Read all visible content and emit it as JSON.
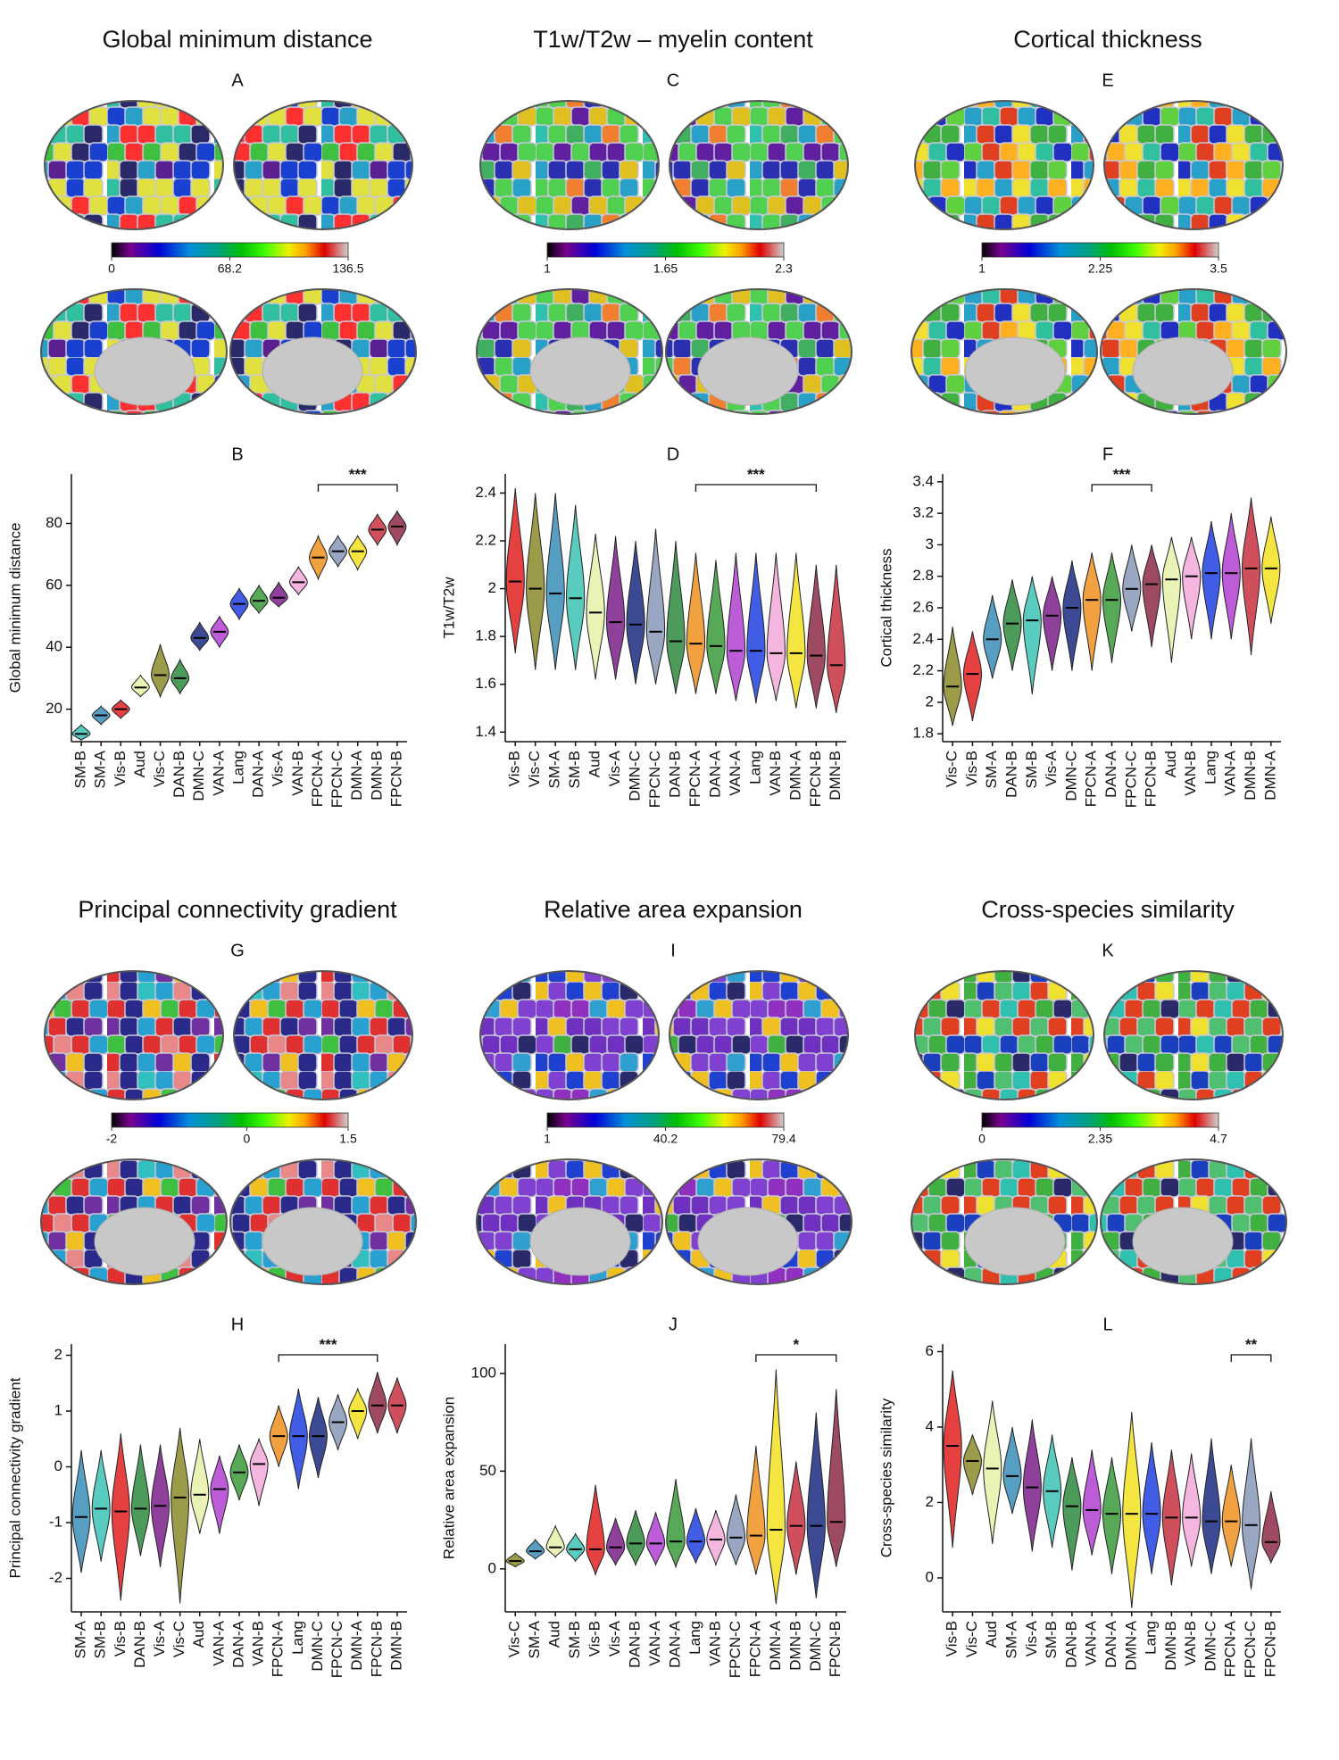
{
  "network_colors": {
    "SM-A": "#3a8db8",
    "SM-B": "#3cc2b4",
    "Vis-A": "#7a1e8a",
    "Vis-B": "#e02020",
    "Vis-C": "#8a8a2a",
    "Aud": "#e6f0a8",
    "DAN-A": "#3a9a3a",
    "DAN-B": "#2e8a3e",
    "VAN-A": "#b040d0",
    "VAN-B": "#f2a8d8",
    "Lang": "#2040e0",
    "FPCN-A": "#f09020",
    "FPCN-B": "#8e2a48",
    "FPCN-C": "#8898b8",
    "DMN-A": "#f2e020",
    "DMN-B": "#c83040",
    "DMN-C": "#1a2a80"
  },
  "highlight_labels": {
    "DAN-A": "#5aaa4a",
    "FPCN-A": "#f0a020",
    "DMN-B": "#e05060",
    "FPCN-B": "#b03050"
  },
  "chart_data": [
    {
      "type": "violin",
      "title": "Global minimum distance",
      "map_label": "A",
      "colorbar": {
        "lim": [
          0,
          136.5
        ],
        "ticks": [
          0,
          68.2,
          136.5
        ]
      },
      "label": "B",
      "ylabel": "Global minimum distance",
      "ylim": [
        9.5,
        96
      ],
      "yticks": [
        20,
        40,
        60,
        80
      ],
      "categories": [
        "SM-B",
        "SM-A",
        "Vis-B",
        "Aud",
        "Vis-C",
        "DAN-B",
        "DMN-C",
        "VAN-A",
        "Lang",
        "DAN-A",
        "Vis-A",
        "VAN-B",
        "FPCN-A",
        "FPCN-C",
        "DMN-A",
        "DMN-B",
        "FPCN-B"
      ],
      "values": [
        12,
        18,
        20,
        27,
        31,
        30,
        43,
        45,
        54,
        55,
        56,
        61,
        69,
        71,
        71,
        78,
        79
      ],
      "mins": [
        10,
        15,
        17,
        24,
        24,
        25,
        39,
        40,
        49,
        51,
        53,
        57,
        62,
        66,
        65,
        73,
        73
      ],
      "maxs": [
        15,
        21,
        23,
        31,
        41,
        36,
        48,
        50,
        59,
        60,
        61,
        66,
        76,
        76,
        76,
        83,
        84
      ],
      "significance": {
        "label": "***",
        "from": "FPCN-A",
        "to": "FPCN-B"
      }
    },
    {
      "type": "violin",
      "title": "T1w/T2w – myelin content",
      "map_label": "C",
      "colorbar": {
        "lim": [
          1,
          2.3
        ],
        "ticks": [
          1,
          1.65,
          2.3
        ]
      },
      "label": "D",
      "ylabel": "T1w/T2w",
      "ylim": [
        1.36,
        2.48
      ],
      "yticks": [
        1.4,
        1.6,
        1.8,
        2.0,
        2.2,
        2.4
      ],
      "categories": [
        "Vis-B",
        "Vis-C",
        "SM-A",
        "SM-B",
        "Aud",
        "Vis-A",
        "DMN-C",
        "FPCN-C",
        "DAN-B",
        "FPCN-A",
        "DAN-A",
        "VAN-A",
        "Lang",
        "VAN-B",
        "DMN-A",
        "FPCN-B",
        "DMN-B"
      ],
      "values": [
        2.03,
        2.0,
        1.98,
        1.96,
        1.9,
        1.86,
        1.85,
        1.82,
        1.78,
        1.77,
        1.76,
        1.74,
        1.74,
        1.73,
        1.73,
        1.72,
        1.68
      ],
      "mins": [
        1.73,
        1.66,
        1.66,
        1.66,
        1.62,
        1.62,
        1.6,
        1.6,
        1.56,
        1.56,
        1.56,
        1.53,
        1.52,
        1.53,
        1.5,
        1.5,
        1.48
      ],
      "maxs": [
        2.42,
        2.4,
        2.4,
        2.35,
        2.23,
        2.22,
        2.2,
        2.25,
        2.2,
        2.15,
        2.12,
        2.15,
        2.15,
        2.15,
        2.15,
        2.1,
        2.1
      ],
      "significance": {
        "label": "***",
        "from": "FPCN-A",
        "to": "FPCN-B"
      }
    },
    {
      "type": "violin",
      "title": "Cortical thickness",
      "map_label": "E",
      "colorbar": {
        "lim": [
          1,
          3.5
        ],
        "ticks": [
          1,
          2.25,
          3.5
        ]
      },
      "label": "F",
      "ylabel": "Cortical thickness",
      "ylim": [
        1.75,
        3.45
      ],
      "yticks": [
        1.8,
        2.0,
        2.2,
        2.4,
        2.6,
        2.8,
        3.0,
        3.2,
        3.4
      ],
      "categories": [
        "Vis-C",
        "Vis-B",
        "SM-A",
        "DAN-B",
        "SM-B",
        "Vis-A",
        "DMN-C",
        "FPCN-A",
        "DAN-A",
        "FPCN-C",
        "FPCN-B",
        "Aud",
        "VAN-B",
        "Lang",
        "VAN-A",
        "DMN-B",
        "DMN-A"
      ],
      "values": [
        2.1,
        2.18,
        2.4,
        2.5,
        2.52,
        2.55,
        2.6,
        2.65,
        2.65,
        2.72,
        2.75,
        2.78,
        2.8,
        2.82,
        2.82,
        2.85,
        2.85
      ],
      "mins": [
        1.85,
        1.88,
        2.15,
        2.2,
        2.05,
        2.2,
        2.2,
        2.2,
        2.25,
        2.45,
        2.35,
        2.25,
        2.4,
        2.4,
        2.4,
        2.3,
        2.5
      ],
      "maxs": [
        2.48,
        2.45,
        2.68,
        2.78,
        2.8,
        2.8,
        2.9,
        2.95,
        2.95,
        3.0,
        3.0,
        3.05,
        3.05,
        3.15,
        3.2,
        3.3,
        3.18
      ],
      "significance": {
        "label": "***",
        "from": "FPCN-A",
        "to": "FPCN-B"
      }
    },
    {
      "type": "violin",
      "title": "Principal connectivity gradient",
      "map_label": "G",
      "colorbar": {
        "lim": [
          -2,
          1.5
        ],
        "ticks": [
          -2,
          0,
          1.5
        ]
      },
      "label": "H",
      "ylabel": "Principal connectivity gradient",
      "ylim": [
        -2.6,
        2.2
      ],
      "yticks": [
        -2,
        -1,
        0,
        1,
        2
      ],
      "categories": [
        "SM-A",
        "SM-B",
        "Vis-B",
        "DAN-B",
        "Vis-A",
        "Vis-C",
        "Aud",
        "VAN-A",
        "DAN-A",
        "VAN-B",
        "FPCN-A",
        "Lang",
        "DMN-C",
        "FPCN-C",
        "DMN-A",
        "FPCN-B",
        "DMN-B"
      ],
      "values": [
        -0.9,
        -0.75,
        -0.8,
        -0.75,
        -0.7,
        -0.55,
        -0.5,
        -0.4,
        -0.1,
        0.05,
        0.55,
        0.55,
        0.55,
        0.8,
        1.0,
        1.1,
        1.1
      ],
      "mins": [
        -1.9,
        -1.7,
        -2.4,
        -1.6,
        -1.8,
        -2.45,
        -1.2,
        -1.2,
        -0.6,
        -0.7,
        0,
        -0.4,
        -0.2,
        0.3,
        0.5,
        0.6,
        0.6
      ],
      "maxs": [
        0.3,
        0.3,
        0.6,
        0.4,
        0.4,
        0.7,
        0.5,
        0.2,
        0.4,
        0.5,
        1.1,
        1.4,
        1.25,
        1.3,
        1.4,
        1.7,
        1.6
      ],
      "significance": {
        "label": "***",
        "from": "FPCN-A",
        "to": "FPCN-B"
      }
    },
    {
      "type": "violin",
      "title": "Relative area expansion",
      "map_label": "I",
      "colorbar": {
        "lim": [
          1,
          79.4
        ],
        "ticks": [
          1,
          40.2,
          79.4
        ]
      },
      "label": "J",
      "ylabel": "Relative area expansion",
      "ylim": [
        -22,
        115
      ],
      "yticks": [
        0,
        50,
        100
      ],
      "categories": [
        "Vis-C",
        "SM-A",
        "Aud",
        "SM-B",
        "Vis-B",
        "Vis-A",
        "DAN-B",
        "VAN-A",
        "DAN-A",
        "Lang",
        "VAN-B",
        "FPCN-C",
        "FPCN-A",
        "DMN-A",
        "DMN-B",
        "DMN-C",
        "FPCN-B"
      ],
      "values": [
        4,
        9,
        11,
        10,
        10,
        11,
        13,
        13,
        14,
        14,
        15,
        16,
        17,
        20,
        22,
        22,
        24
      ],
      "mins": [
        1,
        5,
        6,
        4,
        -3,
        2,
        2,
        2,
        1,
        3,
        2,
        2,
        -3,
        -18,
        -3,
        -15,
        1
      ],
      "maxs": [
        8,
        15,
        22,
        18,
        43,
        26,
        30,
        29,
        46,
        31,
        30,
        38,
        63,
        102,
        55,
        80,
        92
      ],
      "significance": {
        "label": "*",
        "from": "FPCN-A",
        "to": "FPCN-B"
      }
    },
    {
      "type": "violin",
      "title": "Cross-species similarity",
      "map_label": "K",
      "colorbar": {
        "lim": [
          0,
          4.7
        ],
        "ticks": [
          0,
          2.35,
          4.7
        ]
      },
      "label": "L",
      "ylabel": "Cross-species similarity",
      "ylim": [
        -0.9,
        6.2
      ],
      "yticks": [
        0,
        2,
        4,
        6
      ],
      "categories": [
        "Vis-B",
        "Vis-C",
        "Aud",
        "SM-A",
        "Vis-A",
        "SM-B",
        "DAN-B",
        "VAN-A",
        "DAN-A",
        "DMN-A",
        "Lang",
        "DMN-B",
        "VAN-B",
        "DMN-C",
        "FPCN-A",
        "FPCN-C",
        "FPCN-B"
      ],
      "values": [
        3.5,
        3.1,
        2.9,
        2.7,
        2.4,
        2.3,
        1.9,
        1.8,
        1.7,
        1.7,
        1.7,
        1.6,
        1.6,
        1.5,
        1.5,
        1.4,
        0.95
      ],
      "mins": [
        0.8,
        2.2,
        0.9,
        1.7,
        0.7,
        0.8,
        0.2,
        0.6,
        0.1,
        -0.8,
        0.1,
        -0.2,
        0.3,
        0.1,
        0.3,
        -0.3,
        0.4
      ],
      "maxs": [
        5.5,
        3.8,
        4.7,
        4.0,
        4.2,
        3.8,
        3.2,
        3.4,
        3.2,
        4.4,
        3.6,
        3.4,
        3.3,
        3.7,
        3.0,
        3.7,
        2.3
      ],
      "significance": {
        "label": "**",
        "from": "FPCN-A",
        "to": "FPCN-B"
      }
    }
  ]
}
